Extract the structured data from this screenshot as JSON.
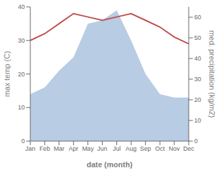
{
  "chart_data": {
    "type": "line",
    "categories": [
      "Jan",
      "Feb",
      "Mar",
      "Apr",
      "May",
      "Jun",
      "Jul",
      "Aug",
      "Sep",
      "Oct",
      "Nov",
      "Dec"
    ],
    "series": [
      {
        "type": "area",
        "color": "#b8cce4",
        "values": [
          14,
          16,
          21,
          25,
          35,
          36,
          39,
          30,
          20,
          14,
          13,
          13
        ]
      },
      {
        "type": "line",
        "color": "#c0504d",
        "values": [
          30,
          32,
          35,
          38,
          37,
          36,
          37,
          38,
          36,
          34,
          31,
          29
        ]
      }
    ],
    "xlabel": "date (month)",
    "ylabel": "max temp (C)",
    "y2label": "med. precipitation (kg/m2)",
    "ylim": [
      0,
      40
    ],
    "yticks": [
      0,
      10,
      20,
      30,
      40
    ],
    "y2lim": [
      0,
      65
    ],
    "y2ticks": [
      0,
      10,
      20,
      30,
      40,
      50,
      60
    ],
    "grid": false
  }
}
